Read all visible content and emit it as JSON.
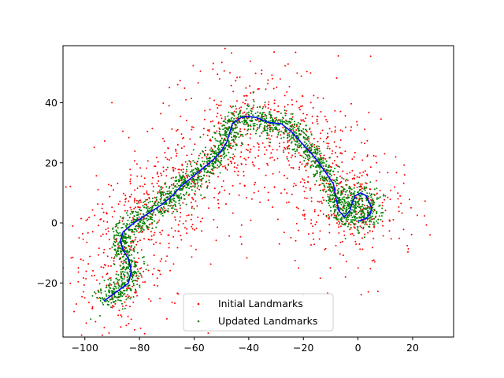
{
  "chart_data": {
    "type": "scatter",
    "title": "",
    "xlabel": "",
    "ylabel": "",
    "xlim": [
      -108,
      35
    ],
    "ylim": [
      -38,
      59
    ],
    "xticks": [
      -100,
      -80,
      -60,
      -40,
      -20,
      0,
      20
    ],
    "yticks": [
      -20,
      0,
      20,
      40
    ],
    "xtick_labels": [
      "−100",
      "−80",
      "−60",
      "−40",
      "−20",
      "0",
      "20"
    ],
    "ytick_labels": [
      "−20",
      "0",
      "20",
      "40"
    ],
    "grid": false,
    "legend": {
      "position": "lower center",
      "entries": [
        {
          "label": "Initial Landmarks",
          "color": "#ff0000"
        },
        {
          "label": "Updated Landmarks",
          "color": "#008000"
        }
      ]
    },
    "series": [
      {
        "name": "Initial Landmarks",
        "color": "#ff0000",
        "marker": "point",
        "spread": 12,
        "count": 1500
      },
      {
        "name": "Updated Landmarks",
        "color": "#008000",
        "marker": "point",
        "spread": 2.2,
        "count": 2200
      },
      {
        "name": "",
        "color": "#0000ff",
        "style": "line",
        "path": [
          {
            "x": -93,
            "y": -26
          },
          {
            "x": -90,
            "y": -24
          },
          {
            "x": -87,
            "y": -22
          },
          {
            "x": -84,
            "y": -20
          },
          {
            "x": -83,
            "y": -16
          },
          {
            "x": -84,
            "y": -12
          },
          {
            "x": -86,
            "y": -9
          },
          {
            "x": -87,
            "y": -6
          },
          {
            "x": -86,
            "y": -3
          },
          {
            "x": -82,
            "y": 0
          },
          {
            "x": -77,
            "y": 3
          },
          {
            "x": -72,
            "y": 6
          },
          {
            "x": -68,
            "y": 9
          },
          {
            "x": -65,
            "y": 12
          },
          {
            "x": -61,
            "y": 15
          },
          {
            "x": -57,
            "y": 18
          },
          {
            "x": -53,
            "y": 21
          },
          {
            "x": -50,
            "y": 24
          },
          {
            "x": -48,
            "y": 27
          },
          {
            "x": -47,
            "y": 30
          },
          {
            "x": -46,
            "y": 33
          },
          {
            "x": -43,
            "y": 35
          },
          {
            "x": -40,
            "y": 35.5
          },
          {
            "x": -37,
            "y": 35
          },
          {
            "x": -33,
            "y": 33.5
          },
          {
            "x": -28,
            "y": 33
          },
          {
            "x": -24,
            "y": 30
          },
          {
            "x": -20,
            "y": 26
          },
          {
            "x": -16,
            "y": 22
          },
          {
            "x": -12,
            "y": 17
          },
          {
            "x": -9,
            "y": 13
          },
          {
            "x": -8,
            "y": 8
          },
          {
            "x": -7,
            "y": 4
          },
          {
            "x": -5,
            "y": 2
          },
          {
            "x": -3,
            "y": 4
          },
          {
            "x": -2,
            "y": 7
          },
          {
            "x": -1,
            "y": 9
          },
          {
            "x": 1,
            "y": 10
          },
          {
            "x": 3,
            "y": 9
          },
          {
            "x": 4,
            "y": 7
          },
          {
            "x": 5,
            "y": 5
          },
          {
            "x": 4.5,
            "y": 3
          },
          {
            "x": 3,
            "y": 1.5
          },
          {
            "x": 0,
            "y": 0.5
          }
        ]
      }
    ]
  }
}
